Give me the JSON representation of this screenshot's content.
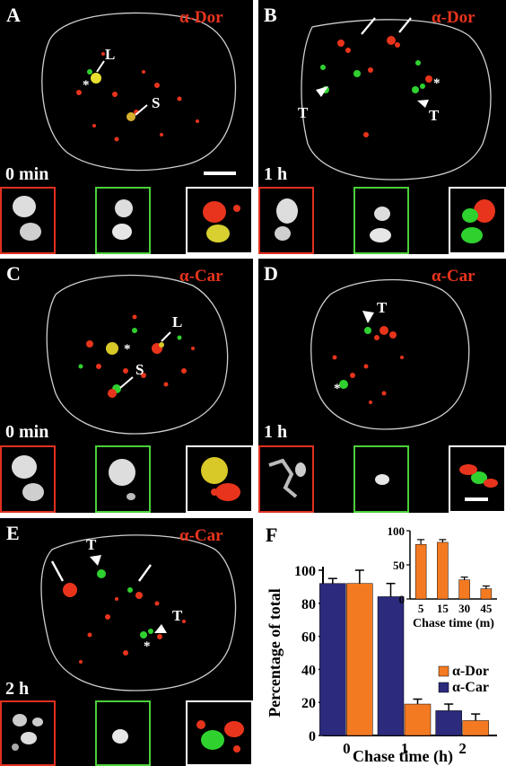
{
  "panels": [
    {
      "letter": "A",
      "antibody": "α-Dor",
      "time": "0 min",
      "labels": [
        "L",
        "S"
      ]
    },
    {
      "letter": "B",
      "antibody": "α-Dor",
      "time": "1 h",
      "labels": [
        "T",
        "T"
      ]
    },
    {
      "letter": "C",
      "antibody": "α-Car",
      "time": "0 min",
      "labels": [
        "L",
        "S"
      ]
    },
    {
      "letter": "D",
      "antibody": "α-Car",
      "time": "1 h",
      "labels": [
        "T"
      ]
    },
    {
      "letter": "E",
      "antibody": "α-Car",
      "time": "2 h",
      "labels": [
        "T",
        "T"
      ]
    }
  ],
  "star": "*",
  "colors": {
    "red_channel": "#e8341c",
    "green_channel": "#2fd12f",
    "red_frame": "#e03020",
    "green_frame": "#4ccf3a",
    "white_frame": "#ffffff",
    "dor_bar": "#f47a22",
    "car_bar": "#2b2a7c"
  },
  "chart_panel_letter": "F",
  "chart_data": [
    {
      "type": "bar",
      "ylabel": "Percentage of total",
      "xlabel": "Chase time (h)",
      "categories": [
        "0",
        "1",
        "2"
      ],
      "ylim": [
        0,
        100
      ],
      "yticks": [
        "0",
        "20",
        "40",
        "60",
        "80",
        "100"
      ],
      "series": [
        {
          "name": "α-Car",
          "color": "#2b2a7c",
          "values": [
            92,
            84,
            15
          ],
          "errors": [
            3,
            8,
            4
          ]
        },
        {
          "name": "α-Dor",
          "color": "#f47a22",
          "values": [
            92,
            19,
            9
          ],
          "errors": [
            8,
            3,
            4
          ]
        }
      ],
      "legend": [
        "α-Dor",
        "α-Car"
      ],
      "legend_placement": "right"
    },
    {
      "type": "bar",
      "xlabel": "Chase time (m)",
      "categories": [
        "5",
        "15",
        "30",
        "45"
      ],
      "ylim": [
        0,
        100
      ],
      "yticks": [
        "0",
        "50",
        "100"
      ],
      "series": [
        {
          "color": "#f47a22",
          "values": [
            80,
            83,
            28,
            15
          ],
          "errors": [
            7,
            4,
            4,
            4
          ]
        }
      ],
      "legend_placement": "inset top-right"
    }
  ]
}
